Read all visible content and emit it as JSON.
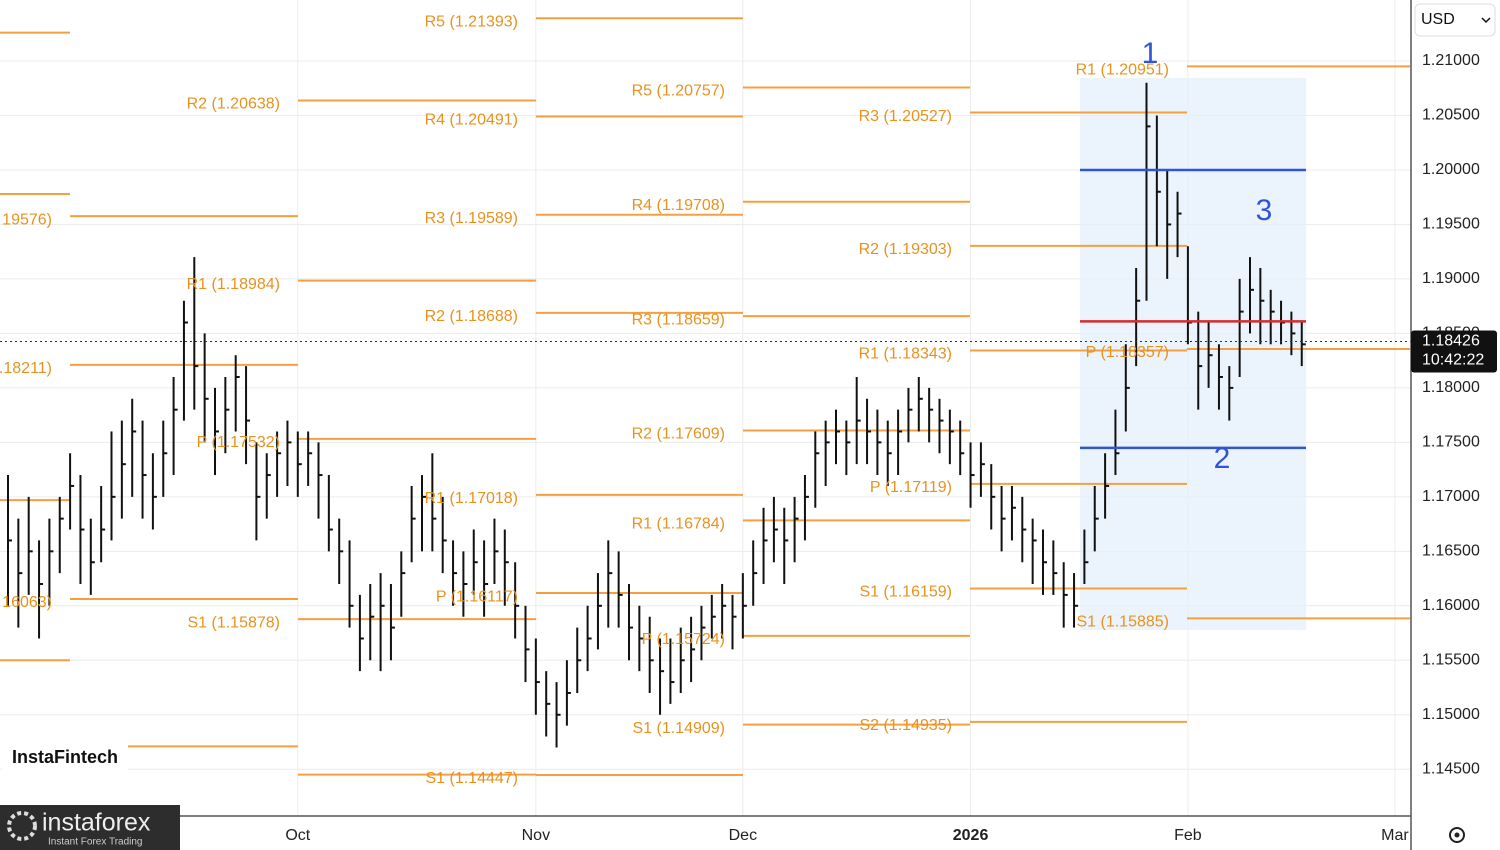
{
  "chart_data": {
    "type": "ohlc",
    "currency": "USD",
    "last_price": {
      "value": 1.18426,
      "label": "1.18426"
    },
    "last_time": "10:42:22",
    "ylim": [
      1.1408,
      1.2156
    ],
    "yticks": [
      {
        "value": 1.21,
        "label": "1.21000"
      },
      {
        "value": 1.205,
        "label": "1.20500"
      },
      {
        "value": 1.2,
        "label": "1.20000"
      },
      {
        "value": 1.195,
        "label": "1.19500"
      },
      {
        "value": 1.19,
        "label": "1.19000"
      },
      {
        "value": 1.185,
        "label": "1.18500"
      },
      {
        "value": 1.18,
        "label": "1.18000"
      },
      {
        "value": 1.175,
        "label": "1.17500"
      },
      {
        "value": 1.17,
        "label": "1.17000"
      },
      {
        "value": 1.165,
        "label": "1.16500"
      },
      {
        "value": 1.16,
        "label": "1.16000"
      },
      {
        "value": 1.155,
        "label": "1.15500"
      },
      {
        "value": 1.15,
        "label": "1.15000"
      },
      {
        "value": 1.145,
        "label": "1.14500"
      }
    ],
    "grid": true,
    "bar_color": "#111111",
    "categories": [
      null,
      null,
      null,
      null,
      null,
      null,
      null,
      null,
      null,
      null,
      null,
      null,
      null,
      null,
      null,
      null,
      null,
      null,
      null,
      null,
      null,
      null,
      null,
      null,
      null,
      null,
      null,
      null,
      "Oct",
      null,
      null,
      null,
      null,
      null,
      null,
      null,
      null,
      null,
      null,
      null,
      null,
      null,
      null,
      null,
      null,
      null,
      null,
      null,
      null,
      null,
      null,
      "Nov",
      null,
      null,
      null,
      null,
      null,
      null,
      null,
      null,
      null,
      null,
      null,
      null,
      null,
      null,
      null,
      null,
      null,
      null,
      null,
      "Dec",
      null,
      null,
      null,
      null,
      null,
      null,
      null,
      null,
      null,
      null,
      null,
      null,
      null,
      null,
      null,
      null,
      null,
      null,
      null,
      null,
      null,
      "2026",
      null,
      null,
      null,
      null,
      null,
      null,
      null,
      null,
      null,
      null,
      null,
      null,
      null,
      null,
      null,
      null,
      null,
      null,
      null,
      null,
      "Feb",
      null,
      null,
      null,
      null,
      null,
      null,
      null,
      null,
      null,
      null,
      null,
      null,
      null,
      null,
      null,
      null,
      null,
      null,
      null,
      "Mar",
      null
    ],
    "high": [
      1.172,
      1.168,
      1.17,
      1.166,
      1.168,
      1.17,
      1.174,
      1.172,
      1.168,
      1.171,
      1.176,
      1.177,
      1.179,
      1.177,
      1.174,
      1.177,
      1.181,
      1.188,
      1.192,
      1.185,
      1.18,
      1.181,
      1.183,
      1.182,
      1.175,
      1.174,
      1.176,
      1.177,
      1.176,
      1.176,
      1.175,
      1.172,
      1.168,
      1.166,
      1.161,
      1.162,
      1.163,
      1.162,
      1.165,
      1.171,
      1.172,
      1.174,
      1.17,
      1.166,
      1.165,
      1.167,
      1.166,
      1.168,
      1.167,
      1.164,
      1.16,
      1.157,
      1.154,
      1.153,
      1.155,
      1.158,
      1.16,
      1.163,
      1.166,
      1.165,
      1.162,
      1.16,
      1.159,
      1.157,
      1.157,
      1.158,
      1.159,
      1.16,
      1.161,
      1.162,
      1.161,
      1.163,
      1.166,
      1.169,
      1.17,
      1.169,
      1.17,
      1.172,
      1.176,
      1.177,
      1.178,
      1.177,
      1.181,
      1.179,
      1.178,
      1.177,
      1.178,
      1.18,
      1.181,
      1.18,
      1.179,
      1.178,
      1.177,
      1.175,
      1.175,
      1.173,
      1.171,
      1.171,
      1.17,
      1.168,
      1.167,
      1.166,
      1.164,
      1.163,
      1.167,
      1.171,
      1.174,
      1.178,
      1.184,
      1.191,
      1.208,
      1.205,
      1.2,
      1.198,
      1.193,
      1.187,
      1.186,
      1.184,
      1.182,
      1.19,
      1.192,
      1.191,
      1.189,
      1.188,
      1.187,
      1.186,
      null,
      null,
      null,
      null,
      null,
      null,
      null,
      null,
      null,
      null
    ],
    "low": [
      1.16,
      1.158,
      1.161,
      1.157,
      1.16,
      1.163,
      1.167,
      1.162,
      1.161,
      1.164,
      1.166,
      1.168,
      1.17,
      1.168,
      1.167,
      1.17,
      1.172,
      1.177,
      1.178,
      1.175,
      1.172,
      1.174,
      1.176,
      1.173,
      1.166,
      1.168,
      1.17,
      1.171,
      1.17,
      1.171,
      1.168,
      1.165,
      1.162,
      1.158,
      1.154,
      1.155,
      1.154,
      1.155,
      1.159,
      1.164,
      1.165,
      1.165,
      1.163,
      1.16,
      1.159,
      1.161,
      1.159,
      1.162,
      1.16,
      1.157,
      1.153,
      1.15,
      1.148,
      1.147,
      1.149,
      1.152,
      1.154,
      1.156,
      1.158,
      1.158,
      1.155,
      1.154,
      1.152,
      1.15,
      1.151,
      1.152,
      1.153,
      1.155,
      1.157,
      1.157,
      1.156,
      1.157,
      1.16,
      1.162,
      1.164,
      1.162,
      1.164,
      1.166,
      1.169,
      1.171,
      1.173,
      1.172,
      1.173,
      1.173,
      1.172,
      1.171,
      1.172,
      1.175,
      1.176,
      1.175,
      1.174,
      1.173,
      1.172,
      1.169,
      1.17,
      1.167,
      1.165,
      1.166,
      1.164,
      1.162,
      1.161,
      1.161,
      1.158,
      1.158,
      1.162,
      1.165,
      1.168,
      1.172,
      1.176,
      1.182,
      1.188,
      1.193,
      1.19,
      1.192,
      1.184,
      1.178,
      1.18,
      1.178,
      1.177,
      1.181,
      1.185,
      1.184,
      1.184,
      1.184,
      1.183,
      1.182,
      null,
      null,
      null,
      null,
      null,
      null,
      null,
      null,
      null,
      null
    ],
    "close": [
      1.166,
      1.163,
      1.165,
      1.162,
      1.165,
      1.168,
      1.171,
      1.167,
      1.164,
      1.167,
      1.17,
      1.173,
      1.176,
      1.172,
      1.17,
      1.174,
      1.178,
      1.186,
      1.182,
      1.179,
      1.176,
      1.178,
      1.181,
      1.177,
      1.17,
      1.172,
      1.174,
      1.175,
      1.173,
      1.174,
      1.172,
      1.167,
      1.165,
      1.16,
      1.157,
      1.159,
      1.16,
      1.158,
      1.163,
      1.168,
      1.17,
      1.168,
      1.166,
      1.163,
      1.162,
      1.164,
      1.162,
      1.165,
      1.164,
      1.16,
      1.156,
      1.153,
      1.151,
      1.15,
      1.152,
      1.155,
      1.157,
      1.16,
      1.163,
      1.161,
      1.158,
      1.157,
      1.155,
      1.154,
      1.153,
      1.155,
      1.156,
      1.158,
      1.159,
      1.16,
      1.159,
      1.16,
      1.163,
      1.166,
      1.167,
      1.166,
      1.168,
      1.17,
      1.174,
      1.175,
      1.176,
      1.175,
      1.177,
      1.176,
      1.175,
      1.174,
      1.176,
      1.178,
      1.179,
      1.178,
      1.177,
      1.176,
      1.174,
      1.172,
      1.173,
      1.17,
      1.168,
      1.169,
      1.167,
      1.166,
      1.164,
      1.163,
      1.161,
      1.16,
      1.164,
      1.168,
      1.171,
      1.174,
      1.18,
      1.188,
      1.204,
      1.198,
      1.195,
      1.196,
      1.186,
      1.182,
      1.183,
      1.181,
      1.18,
      1.187,
      1.189,
      1.188,
      1.187,
      1.186,
      1.185,
      1.184,
      null,
      null,
      null,
      null,
      null,
      null,
      null,
      null,
      null,
      null
    ],
    "pivot_color": "#f5a040",
    "pivots": [
      [
        {
          "value": 1.2126
        },
        {
          "value": 1.1978
        },
        {
          "value": 1.1697
        },
        {
          "value": 1.155
        }
      ],
      [
        {
          "label": "19576)",
          "value": 1.19576
        },
        {
          "label": ".18211)",
          "value": 1.18211
        },
        {
          "label": "16063)",
          "value": 1.16063
        },
        {
          "value": 1.1471
        }
      ],
      [
        {
          "label": "R2 (1.20638)",
          "value": 1.20638
        },
        {
          "label": "R1 (1.18984)",
          "value": 1.18984
        },
        {
          "label": "P (1.17532)",
          "value": 1.17532
        },
        {
          "label": "S1 (1.15878)",
          "value": 1.15878
        },
        {
          "value": 1.1445
        }
      ],
      [
        {
          "label": "R5 (1.21393)",
          "value": 1.21393
        },
        {
          "label": "R4 (1.20491)",
          "value": 1.20491
        },
        {
          "label": "R3 (1.19589)",
          "value": 1.19589
        },
        {
          "label": "R2 (1.18688)",
          "value": 1.18688
        },
        {
          "label": "R1 (1.17018)",
          "value": 1.17018
        },
        {
          "label": "P (1.16117)",
          "value": 1.16117
        },
        {
          "label": "S1 (1.14447)",
          "value": 1.14447
        }
      ],
      [
        {
          "label": "R5 (1.20757)",
          "value": 1.20757
        },
        {
          "label": "R4 (1.19708)",
          "value": 1.19708
        },
        {
          "label": "R3 (1.18659)",
          "value": 1.18659
        },
        {
          "label": "R2 (1.17609)",
          "value": 1.17609
        },
        {
          "label": "R1 (1.16784)",
          "value": 1.16784
        },
        {
          "label": "P (1.15724)",
          "value": 1.15724
        },
        {
          "label": "S1 (1.14909)",
          "value": 1.14909
        }
      ],
      [
        {
          "label": "R3 (1.20527)",
          "value": 1.20527
        },
        {
          "label": "R2 (1.19303)",
          "value": 1.19303
        },
        {
          "label": "R1 (1.18343)",
          "value": 1.18343
        },
        {
          "label": "P (1.17119)",
          "value": 1.17119
        },
        {
          "label": "S1 (1.16159)",
          "value": 1.16159
        },
        {
          "label": "S2 (1.14935)",
          "value": 1.14935
        }
      ],
      [
        {
          "label": "R1 (1.20951)",
          "value": 1.20951
        },
        {
          "label": "P (1.18357)",
          "value": 1.18357
        },
        {
          "label": "S1 (1.15885)",
          "value": 1.15885
        }
      ]
    ],
    "hlines": [
      {
        "value": 1.2,
        "color": "#2f55d4"
      },
      {
        "value": 1.1745,
        "color": "#2f55d4"
      },
      {
        "value": 1.1861,
        "color": "#d62b2b"
      }
    ],
    "annotations": [
      "1",
      "2",
      "3"
    ]
  },
  "branding": {
    "fintech": "InstaFintech",
    "logo": "instaforex",
    "tagline": "Instant Forex Trading"
  }
}
